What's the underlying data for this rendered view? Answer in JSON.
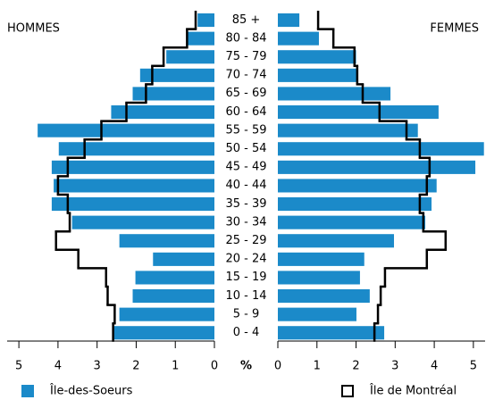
{
  "chart_data": {
    "type": "pyramid",
    "left_label": "HOMMES",
    "right_label": "FEMMES",
    "xlabel": "%",
    "categories": [
      "85 +",
      "80 - 84",
      "75 - 79",
      "70 - 74",
      "65 - 69",
      "60 - 64",
      "55 - 59",
      "50 - 54",
      "45 - 49",
      "40 - 44",
      "35 - 39",
      "30 - 34",
      "25 - 29",
      "20 - 24",
      "15 - 19",
      "10 - 14",
      "5 - 9",
      "0 - 4"
    ],
    "series": [
      {
        "name": "Île-des-Soeurs",
        "style": "bar",
        "color": "#1b8ac9",
        "left": [
          0.43,
          0.68,
          1.23,
          1.9,
          2.09,
          2.64,
          4.52,
          3.98,
          4.16,
          4.11,
          4.16,
          3.64,
          2.43,
          1.57,
          2.02,
          2.09,
          2.43,
          2.59
        ],
        "right": [
          0.55,
          1.05,
          2.0,
          2.03,
          2.88,
          4.11,
          3.58,
          5.27,
          5.05,
          4.06,
          3.93,
          3.77,
          2.97,
          2.21,
          2.1,
          2.35,
          2.01,
          2.72
        ]
      },
      {
        "name": "Île de Montréal",
        "style": "outline",
        "color": "#000000",
        "left": [
          0.48,
          0.7,
          1.3,
          1.59,
          1.75,
          2.25,
          2.89,
          3.32,
          3.75,
          4.0,
          3.75,
          3.7,
          4.05,
          3.48,
          2.77,
          2.73,
          2.55,
          2.59
        ],
        "right": [
          1.03,
          1.42,
          1.96,
          2.03,
          2.17,
          2.6,
          3.29,
          3.63,
          3.88,
          3.81,
          3.63,
          3.72,
          4.29,
          3.81,
          2.74,
          2.63,
          2.56,
          2.47
        ]
      }
    ],
    "xlim": [
      0,
      5.3
    ],
    "xticks": [
      0,
      1,
      2,
      3,
      4,
      5
    ]
  }
}
